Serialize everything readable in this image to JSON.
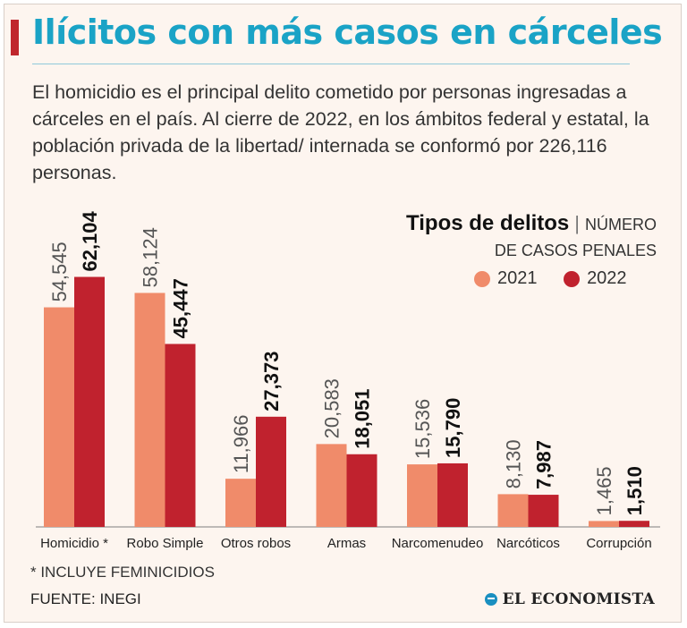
{
  "header": {
    "title": "Ilícitos con más casos en cárceles",
    "description": "El homicidio es el principal delito cometido por personas ingresadas a cárceles en el país. Al cierre de 2022, en los ámbitos federal y estatal, la población privada de la libertad/ internada se conformó por 226,116 personas."
  },
  "legend": {
    "title": "Tipos de delitos",
    "subtitle_part1": "NÚMERO",
    "subtitle_part2": "DE CASOS PENALES"
  },
  "colors": {
    "y2021": "#f08b6a",
    "y2022": "#c0222e"
  },
  "chart_data": {
    "type": "bar",
    "title": "Tipos de delitos",
    "ylabel": "NÚMERO DE CASOS PENALES",
    "xlabel": "",
    "categories": [
      "Homicidio *",
      "Robo Simple",
      "Otros robos",
      "Armas",
      "Narcomenudeo",
      "Narcóticos",
      "Corrupción"
    ],
    "series": [
      {
        "name": "2021",
        "values": [
          54545,
          58124,
          11966,
          20583,
          15536,
          8130,
          1465
        ],
        "labels": [
          "54,545",
          "58,124",
          "11,966",
          "20,583",
          "15,536",
          "8,130",
          "1,465"
        ]
      },
      {
        "name": "2022",
        "values": [
          62104,
          45447,
          27373,
          18051,
          15790,
          7987,
          1510
        ],
        "labels": [
          "62,104",
          "45,447",
          "27,373",
          "18,051",
          "15,790",
          "7,987",
          "1,510"
        ]
      }
    ],
    "ylim": [
      0,
      70000
    ],
    "grid": false,
    "legend_position": "top-right"
  },
  "footer": {
    "footnote": "* INCLUYE FEMINICIDIOS",
    "source": "FUENTE: INEGI",
    "brand": "EL ECONOMISTA"
  }
}
